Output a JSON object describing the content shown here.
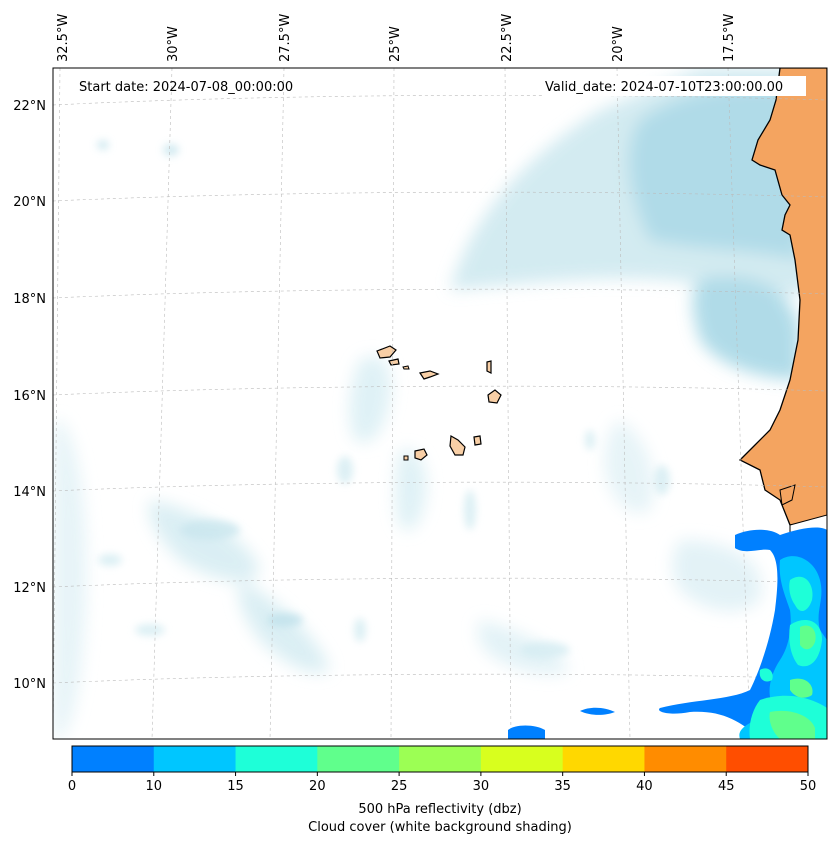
{
  "map": {
    "start_date_label": "Start date: 2024-07-08_00:00:00",
    "valid_date_label": "Valid_date: 2024-07-10T23:00:00.00",
    "longitude_labels": [
      "32.5°W",
      "30°W",
      "27.5°W",
      "25°W",
      "22.5°W",
      "20°W",
      "17.5°W"
    ],
    "latitude_labels": [
      "22°N",
      "20°N",
      "18°N",
      "16°N",
      "14°N",
      "12°N",
      "10°N"
    ],
    "colors": {
      "land": "#f4a460",
      "island_fill": "#f8cfa6",
      "coast": "#000000",
      "cloud": "#a8d8e6"
    }
  },
  "colorbar": {
    "ticks": [
      "0",
      "10",
      "15",
      "20",
      "25",
      "30",
      "35",
      "40",
      "45",
      "50"
    ],
    "colors": [
      "#0080ff",
      "#00c6ff",
      "#1effd8",
      "#60ff8c",
      "#9cff54",
      "#d8ff1e",
      "#ffd800",
      "#ff8c00",
      "#ff4e00"
    ],
    "label_line1": "500 hPa reflectivity (dbz)",
    "label_line2": "Cloud cover (white background shading)"
  }
}
